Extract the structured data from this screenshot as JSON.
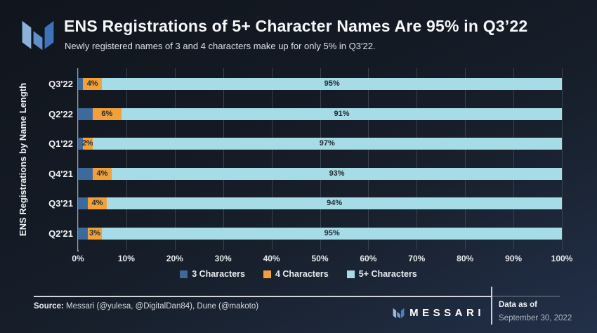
{
  "header": {
    "logo": "messari-logo"
  },
  "chart_data": {
    "type": "bar",
    "orientation": "horizontal",
    "stacked": true,
    "title": "ENS Registrations of 5+ Character Names Are 95% in Q3’22",
    "subtitle": "Newly registered names of 3 and 4 characters make up for only 5% in Q3'22.",
    "ylabel": "ENS Registrations by Name Length",
    "xlabel": "",
    "xlim": [
      0,
      100
    ],
    "grid": "vertical",
    "legend_position": "bottom-center",
    "categories": [
      "Q3'22",
      "Q2'22",
      "Q1'22",
      "Q4'21",
      "Q3'21",
      "Q2'21"
    ],
    "series": [
      {
        "name": "3 Characters",
        "color": "#3e699c",
        "show_label": false,
        "values": [
          1,
          3,
          1,
          3,
          2,
          2
        ]
      },
      {
        "name": "4 Characters",
        "color": "#f2a138",
        "show_label": true,
        "values": [
          4,
          6,
          2,
          4,
          4,
          3
        ]
      },
      {
        "name": "5+ Characters",
        "color": "#a5dce6",
        "show_label": true,
        "values": [
          95,
          91,
          97,
          93,
          94,
          95
        ]
      }
    ],
    "x_ticks": [
      "0%",
      "10%",
      "20%",
      "30%",
      "40%",
      "50%",
      "60%",
      "70%",
      "80%",
      "90%",
      "100%"
    ],
    "value_label_suffix": "%"
  },
  "footer": {
    "source_label": "Source:",
    "source_text": " Messari (@yulesa, @DigitalDan84), Dune (@makoto)",
    "brand": "MESSARI",
    "data_as_of_label": "Data as of",
    "data_as_of_date": "September 30, 2022"
  }
}
